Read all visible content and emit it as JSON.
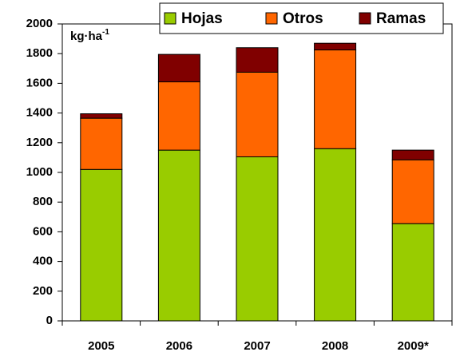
{
  "chart_data": {
    "type": "stacked_bar",
    "y_label": "kg·ha",
    "y_label_superscript": "-1",
    "categories": [
      "2005",
      "2006",
      "2007",
      "2008",
      "2009*"
    ],
    "series": [
      {
        "name": "Hojas",
        "color": "#99cc00",
        "values": [
          1020,
          1150,
          1105,
          1160,
          655
        ]
      },
      {
        "name": "Otros",
        "color": "#ff6600",
        "values": [
          345,
          460,
          570,
          665,
          430
        ]
      },
      {
        "name": "Ramas",
        "color": "#800000",
        "values": [
          30,
          185,
          165,
          45,
          65
        ]
      }
    ],
    "ylim": [
      0,
      2000
    ],
    "yticks": [
      0,
      200,
      400,
      600,
      800,
      1000,
      1200,
      1400,
      1600,
      1800,
      2000
    ],
    "grid": false,
    "legend": "top-right"
  }
}
